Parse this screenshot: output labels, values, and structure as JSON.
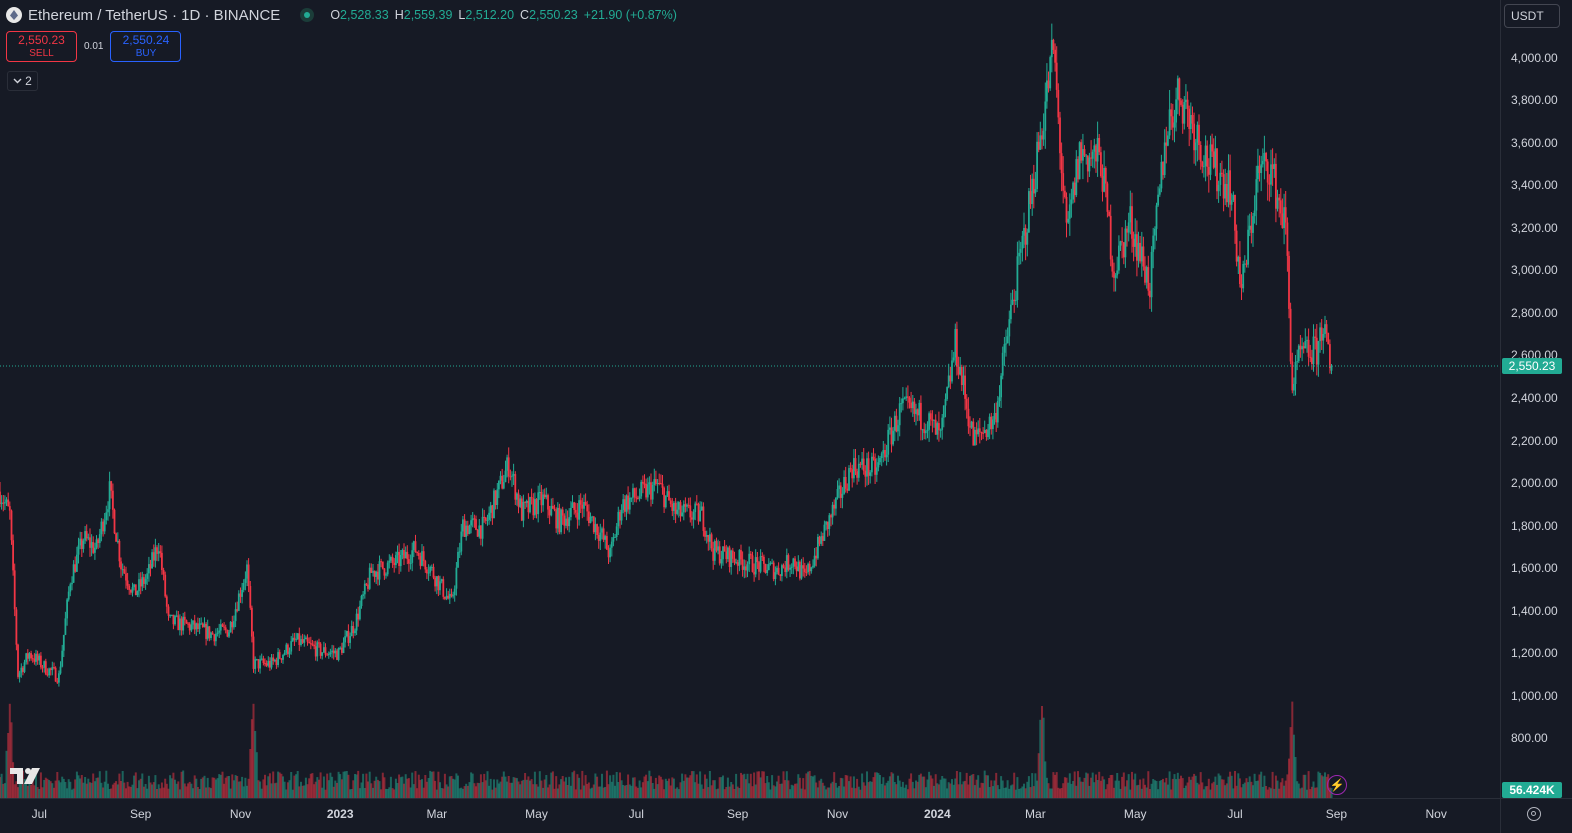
{
  "header": {
    "symbol": "Ethereum / TetherUS · 1D · BINANCE",
    "ohlc": {
      "o_label": "O",
      "o": "2,528.33",
      "h_label": "H",
      "h": "2,559.39",
      "l_label": "L",
      "l": "2,512.20",
      "c_label": "C",
      "c": "2,550.23",
      "change": "+21.90 (+0.87%)"
    }
  },
  "trade": {
    "sell_price": "2,550.23",
    "sell_label": "SELL",
    "spread": "0.01",
    "buy_price": "2,550.24",
    "buy_label": "BUY"
  },
  "indicators_toggle": {
    "count": "2"
  },
  "currency_selector": {
    "value": "USDT"
  },
  "colors": {
    "up": "#22ab94",
    "down": "#f23645",
    "background": "#161a25",
    "grid": "#2a2e39"
  },
  "icons": [
    "symbol-logo-icon",
    "live-status-icon",
    "chevron-down-icon",
    "tradingview-logo-icon",
    "lightning-icon",
    "settings-gear-icon"
  ],
  "chart_data": {
    "type": "candlestick",
    "title": "Ethereum / TetherUS · 1D · BINANCE",
    "interval": "1D",
    "current_price": 2550.23,
    "current_price_label": "2,550.23",
    "current_volume_label": "56.424K",
    "ylim": [
      520,
      4270
    ],
    "y_ticks": [
      800,
      1000,
      1200,
      1400,
      1600,
      1800,
      2000,
      2200,
      2400,
      2600,
      2800,
      3000,
      3200,
      3400,
      3600,
      3800,
      4000
    ],
    "y_tick_labels": [
      "800.00",
      "1,000.00",
      "1,200.00",
      "1,400.00",
      "1,600.00",
      "1,800.00",
      "2,000.00",
      "2,200.00",
      "2,400.00",
      "2,600.00",
      "2,800.00",
      "3,000.00",
      "3,200.00",
      "3,400.00",
      "3,600.00",
      "3,800.00",
      "4,000.00"
    ],
    "x_ticks": [
      {
        "label": "Jul",
        "date": "2022-07-01"
      },
      {
        "label": "Sep",
        "date": "2022-09-01"
      },
      {
        "label": "Nov",
        "date": "2022-11-01"
      },
      {
        "label": "2023",
        "date": "2023-01-01",
        "bold": true
      },
      {
        "label": "Mar",
        "date": "2023-03-01"
      },
      {
        "label": "May",
        "date": "2023-05-01"
      },
      {
        "label": "Jul",
        "date": "2023-07-01"
      },
      {
        "label": "Sep",
        "date": "2023-09-01"
      },
      {
        "label": "Nov",
        "date": "2023-11-01"
      },
      {
        "label": "2024",
        "date": "2024-01-01",
        "bold": true
      },
      {
        "label": "Mar",
        "date": "2024-03-01"
      },
      {
        "label": "May",
        "date": "2024-05-01"
      },
      {
        "label": "Jul",
        "date": "2024-07-01"
      },
      {
        "label": "Sep",
        "date": "2024-09-01"
      },
      {
        "label": "Nov",
        "date": "2024-11-01"
      }
    ],
    "x_range": [
      "2022-06-07",
      "2024-12-10"
    ],
    "close_path": [
      [
        "2022-06-07",
        1960
      ],
      [
        "2022-06-13",
        1850
      ],
      [
        "2022-06-18",
        1100
      ],
      [
        "2022-06-25",
        1200
      ],
      [
        "2022-07-05",
        1130
      ],
      [
        "2022-07-13",
        1090
      ],
      [
        "2022-07-20",
        1550
      ],
      [
        "2022-07-28",
        1740
      ],
      [
        "2022-08-05",
        1690
      ],
      [
        "2022-08-13",
        1960
      ],
      [
        "2022-08-20",
        1620
      ],
      [
        "2022-08-28",
        1480
      ],
      [
        "2022-09-05",
        1560
      ],
      [
        "2022-09-12",
        1720
      ],
      [
        "2022-09-18",
        1350
      ],
      [
        "2022-09-30",
        1330
      ],
      [
        "2022-10-15",
        1290
      ],
      [
        "2022-10-25",
        1310
      ],
      [
        "2022-11-05",
        1600
      ],
      [
        "2022-11-09",
        1150
      ],
      [
        "2022-11-20",
        1150
      ],
      [
        "2022-12-05",
        1260
      ],
      [
        "2022-12-20",
        1210
      ],
      [
        "2022-12-31",
        1200
      ],
      [
        "2023-01-10",
        1340
      ],
      [
        "2023-01-20",
        1580
      ],
      [
        "2023-02-05",
        1630
      ],
      [
        "2023-02-16",
        1690
      ],
      [
        "2023-02-25",
        1600
      ],
      [
        "2023-03-10",
        1430
      ],
      [
        "2023-03-17",
        1800
      ],
      [
        "2023-03-30",
        1790
      ],
      [
        "2023-04-14",
        2090
      ],
      [
        "2023-04-22",
        1860
      ],
      [
        "2023-05-05",
        1920
      ],
      [
        "2023-05-15",
        1820
      ],
      [
        "2023-05-29",
        1900
      ],
      [
        "2023-06-10",
        1750
      ],
      [
        "2023-06-15",
        1660
      ],
      [
        "2023-06-22",
        1900
      ],
      [
        "2023-07-14",
        1990
      ],
      [
        "2023-07-25",
        1860
      ],
      [
        "2023-08-10",
        1850
      ],
      [
        "2023-08-17",
        1680
      ],
      [
        "2023-09-05",
        1630
      ],
      [
        "2023-09-25",
        1590
      ],
      [
        "2023-10-05",
        1640
      ],
      [
        "2023-10-12",
        1550
      ],
      [
        "2023-10-25",
        1790
      ],
      [
        "2023-11-10",
        2080
      ],
      [
        "2023-11-25",
        2060
      ],
      [
        "2023-12-10",
        2350
      ],
      [
        "2023-12-25",
        2300
      ],
      [
        "2024-01-03",
        2210
      ],
      [
        "2024-01-12",
        2650
      ],
      [
        "2024-01-23",
        2200
      ],
      [
        "2024-02-05",
        2300
      ],
      [
        "2024-02-15",
        2800
      ],
      [
        "2024-02-28",
        3380
      ],
      [
        "2024-03-12",
        4040
      ],
      [
        "2024-03-20",
        3150
      ],
      [
        "2024-03-28",
        3550
      ],
      [
        "2024-04-10",
        3520
      ],
      [
        "2024-04-18",
        3000
      ],
      [
        "2024-04-28",
        3230
      ],
      [
        "2024-05-10",
        2930
      ],
      [
        "2024-05-20",
        3660
      ],
      [
        "2024-05-28",
        3840
      ],
      [
        "2024-06-15",
        3500
      ],
      [
        "2024-06-28",
        3400
      ],
      [
        "2024-07-05",
        2900
      ],
      [
        "2024-07-15",
        3450
      ],
      [
        "2024-07-22",
        3500
      ],
      [
        "2024-08-01",
        3200
      ],
      [
        "2024-08-05",
        2450
      ],
      [
        "2024-08-10",
        2600
      ],
      [
        "2024-08-20",
        2620
      ],
      [
        "2024-08-24",
        2760
      ],
      [
        "2024-08-28",
        2528
      ],
      [
        "2024-08-29",
        2550
      ]
    ],
    "volume_series": "daily bars, values not labeled (peaks near 2022-06-13, 2022-11-09, 2024-03-05, 2024-08-05)"
  }
}
